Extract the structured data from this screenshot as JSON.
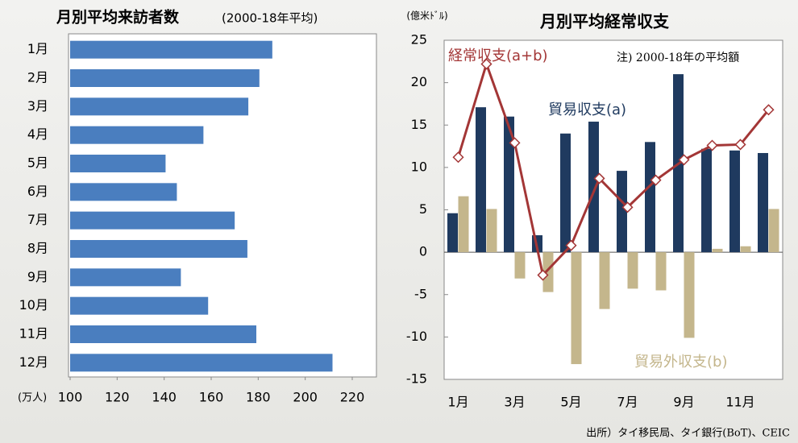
{
  "chart_data": [
    {
      "type": "bar",
      "orientation": "horizontal",
      "title": "月別平均来訪者数",
      "subtitle": "(2000-18年平均)",
      "xlabel": "(万人)",
      "categories": [
        "1月",
        "2月",
        "3月",
        "4月",
        "5月",
        "6月",
        "7月",
        "8月",
        "9月",
        "10月",
        "11月",
        "12月"
      ],
      "values": [
        186,
        180.5,
        175.8,
        156.7,
        140.6,
        145.4,
        170,
        175.4,
        147.1,
        158.7,
        179.2,
        211.6
      ],
      "color": "#4a7ebf",
      "xlim": [
        100,
        220
      ],
      "xticks": [
        100,
        120,
        140,
        160,
        180,
        200,
        220
      ]
    },
    {
      "type": "combo",
      "title": "月別平均経常収支",
      "ylabel": "(億米ﾄﾞﾙ)",
      "note": "注) 2000-18年の平均額",
      "categories": [
        "1月",
        null,
        "3月",
        null,
        "5月",
        null,
        "7月",
        null,
        "9月",
        null,
        "11月",
        null
      ],
      "series": [
        {
          "name": "貿易収支(a)",
          "kind": "bar",
          "color": "#1f3a5f",
          "values": [
            4.6,
            17.1,
            16.0,
            2.0,
            14.0,
            15.4,
            9.6,
            13.0,
            21.0,
            12.2,
            12.0,
            11.7
          ]
        },
        {
          "name": "貿易外収支(b)",
          "kind": "bar",
          "color": "#c4b68c",
          "values": [
            6.6,
            5.1,
            -3.1,
            -4.7,
            -13.2,
            -6.7,
            -4.3,
            -4.5,
            -10.1,
            0.4,
            0.7,
            5.1
          ]
        },
        {
          "name": "経常収支(a+b)",
          "kind": "line",
          "color": "#a33636",
          "values": [
            11.2,
            22.2,
            12.9,
            -2.7,
            0.8,
            8.7,
            5.3,
            8.5,
            10.9,
            12.6,
            12.7,
            16.8
          ]
        }
      ],
      "ylim": [
        -15,
        25
      ],
      "yticks": [
        -15,
        -10,
        -5,
        0,
        5,
        10,
        15,
        20,
        25
      ]
    }
  ],
  "source": "出所）タイ移民局、タイ銀行(BoT)、CEIC"
}
